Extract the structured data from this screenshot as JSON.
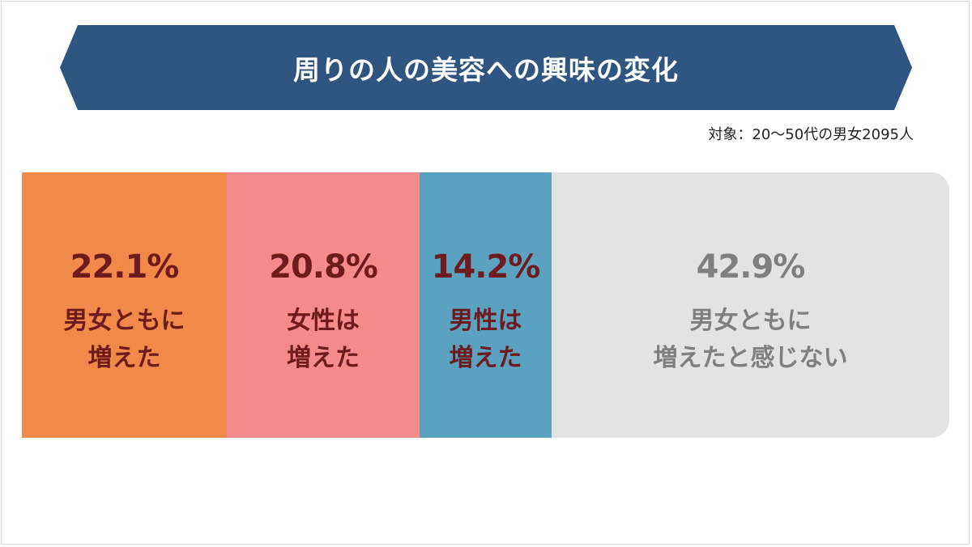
{
  "title": "周りの人の美容への興味の変化",
  "subtitle": "対象：20〜50代の男女2095人",
  "colors": {
    "banner": "#2f5581",
    "dark_text": "#6e1b1e",
    "gray_text": "#7f7f7f"
  },
  "chart_data": {
    "type": "bar",
    "orientation": "horizontal-stacked",
    "unit": "%",
    "categories": [
      "男女ともに\n増えた",
      "女性は\n増えた",
      "男性は\n増えた",
      "男女ともに\n増えたと感じない"
    ],
    "values": [
      22.1,
      20.8,
      14.2,
      42.9
    ],
    "value_labels": [
      "22.1%",
      "20.8%",
      "14.2%",
      "42.9%"
    ],
    "colors": [
      "#f0894a",
      "#f58a8b",
      "#5ba2c1",
      "#e3e3e3"
    ],
    "text_colors": [
      "#6e1b1e",
      "#6e1b1e",
      "#6e1b1e",
      "#7f7f7f"
    ]
  }
}
